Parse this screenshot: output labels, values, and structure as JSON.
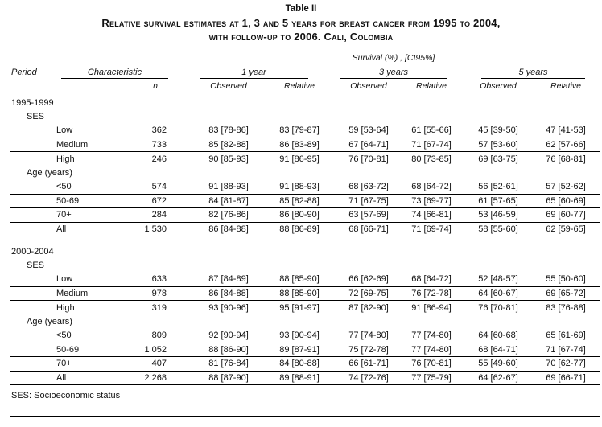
{
  "title": {
    "label": "Table II",
    "line1": "Relative survival estimates at 1, 3 and 5 years for breast cancer from 1995 to 2004,",
    "line2": "with follow-up to 2006. Cali, Colombia"
  },
  "header": {
    "survival_caption": "Survival (%) , [CI95%]",
    "period": "Period",
    "characteristic": "Characteristic",
    "n": "n",
    "groups": [
      "1 year",
      "3 years",
      "5 years"
    ],
    "observed": "Observed",
    "relative": "Relative"
  },
  "body": {
    "sections": [
      {
        "period": "1995-1999",
        "subgroups": [
          {
            "label": "SES",
            "rows": [
              {
                "name": "Low",
                "n": "362",
                "values": [
                  "83 [78-86]",
                  "83 [79-87]",
                  "59 [53-64]",
                  "61 [55-66]",
                  "45 [39-50]",
                  "47 [41-53]"
                ],
                "rule": true
              },
              {
                "name": "Medium",
                "n": "733",
                "values": [
                  "85 [82-88]",
                  "86 [83-89]",
                  "67 [64-71]",
                  "71 [67-74]",
                  "57 [53-60]",
                  "62 [57-66]"
                ],
                "rule": true
              },
              {
                "name": "High",
                "n": "246",
                "values": [
                  "90 [85-93]",
                  "91 [86-95]",
                  "76 [70-81]",
                  "80 [73-85]",
                  "69 [63-75]",
                  "76 [68-81]"
                ],
                "rule": false
              }
            ]
          },
          {
            "label": "Age (years)",
            "rows": [
              {
                "name": "<50",
                "n": "574",
                "values": [
                  "91 [88-93]",
                  "91 [88-93]",
                  "68 [63-72]",
                  "68 [64-72]",
                  "56 [52-61]",
                  "57 [52-62]"
                ],
                "rule": true
              },
              {
                "name": "50-69",
                "n": "672",
                "values": [
                  "84 [81-87]",
                  "85 [82-88]",
                  "71 [67-75]",
                  "73 [69-77]",
                  "61 [57-65]",
                  "65 [60-69]"
                ],
                "rule": true
              },
              {
                "name": "70+",
                "n": "284",
                "values": [
                  "82 [76-86]",
                  "86 [80-90]",
                  "63 [57-69]",
                  "74 [66-81]",
                  "53 [46-59]",
                  "69 [60-77]"
                ],
                "rule": true
              },
              {
                "name": "All",
                "n": "1 530",
                "values": [
                  "86 [84-88]",
                  "88 [86-89]",
                  "68 [66-71]",
                  "71 [69-74]",
                  "58 [55-60]",
                  "62 [59-65]"
                ],
                "rule": true
              }
            ]
          }
        ]
      },
      {
        "period": "2000-2004",
        "subgroups": [
          {
            "label": "SES",
            "rows": [
              {
                "name": "Low",
                "n": "633",
                "values": [
                  "87 [84-89]",
                  "88 [85-90]",
                  "66 [62-69]",
                  "68 [64-72]",
                  "52 [48-57]",
                  "55 [50-60]"
                ],
                "rule": true
              },
              {
                "name": "Medium",
                "n": "978",
                "values": [
                  "86 [84-88]",
                  "88 [85-90]",
                  "72 [69-75]",
                  "76 [72-78]",
                  "64 [60-67]",
                  "69 [65-72]"
                ],
                "rule": true
              },
              {
                "name": "High",
                "n": "319",
                "values": [
                  "93 [90-96]",
                  "95 [91-97]",
                  "87 [82-90]",
                  "91 [86-94]",
                  "76 [70-81]",
                  "83 [76-88]"
                ],
                "rule": false
              }
            ]
          },
          {
            "label": "Age (years)",
            "rows": [
              {
                "name": "<50",
                "n": "809",
                "values": [
                  "92 [90-94]",
                  "93 [90-94]",
                  "77 [74-80]",
                  "77 [74-80]",
                  "64 [60-68]",
                  "65 [61-69]"
                ],
                "rule": true
              },
              {
                "name": "50-69",
                "n": "1 052",
                "values": [
                  "88 [86-90]",
                  "89 [87-91]",
                  "75 [72-78]",
                  "77 [74-80]",
                  "68 [64-71]",
                  "71 [67-74]"
                ],
                "rule": true
              },
              {
                "name": "70+",
                "n": "407",
                "values": [
                  "81 [76-84]",
                  "84 [80-88]",
                  "66 [61-71]",
                  "76 [70-81]",
                  "55 [49-60]",
                  "70 [62-77]"
                ],
                "rule": true
              },
              {
                "name": "All",
                "n": "2 268",
                "values": [
                  "88 [87-90]",
                  "89 [88-91]",
                  "74 [72-76]",
                  "77 [75-79]",
                  "64 [62-67]",
                  "69 [66-71]"
                ],
                "rule": true
              }
            ]
          }
        ]
      }
    ]
  },
  "footnote": "SES: Socioeconomic status"
}
